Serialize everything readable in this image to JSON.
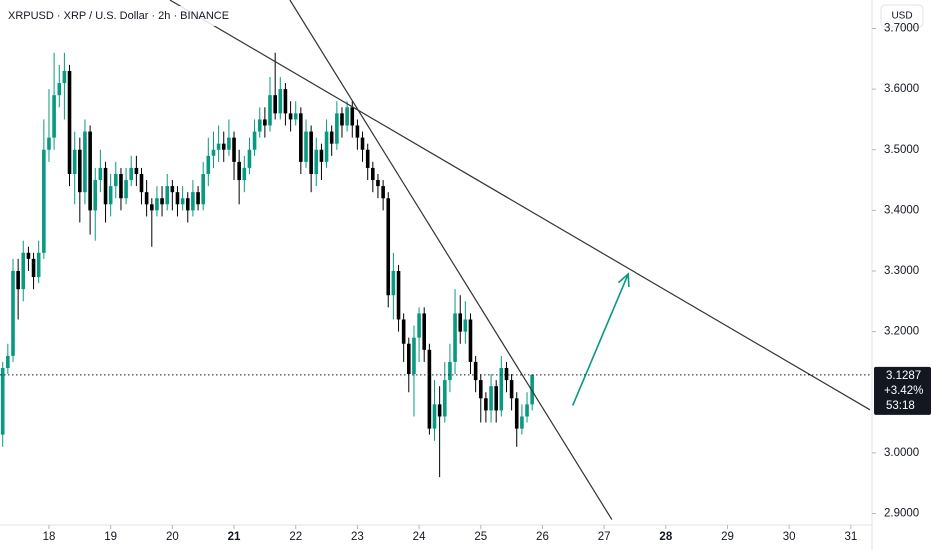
{
  "chart_data": {
    "type": "candlestick",
    "title": "XRPUSD · XRP / U.S. Dollar · 2h · BINANCE",
    "currency": "USD",
    "up_color": "#089981",
    "down_color": "#000000",
    "x": [
      17.25,
      17.333,
      17.417,
      17.5,
      17.583,
      17.667,
      17.75,
      17.833,
      17.917,
      18,
      18.083,
      18.167,
      18.25,
      18.333,
      18.417,
      18.5,
      18.583,
      18.667,
      18.75,
      18.833,
      18.917,
      19,
      19.083,
      19.167,
      19.25,
      19.333,
      19.417,
      19.5,
      19.583,
      19.667,
      19.75,
      19.833,
      19.917,
      20,
      20.083,
      20.167,
      20.25,
      20.333,
      20.417,
      20.5,
      20.583,
      20.667,
      20.75,
      20.833,
      20.917,
      21,
      21.083,
      21.167,
      21.25,
      21.333,
      21.417,
      21.5,
      21.583,
      21.667,
      21.75,
      21.833,
      21.917,
      22,
      22.083,
      22.167,
      22.25,
      22.333,
      22.417,
      22.5,
      22.583,
      22.667,
      22.75,
      22.833,
      22.917,
      23,
      23.083,
      23.167,
      23.25,
      23.333,
      23.417,
      23.5,
      23.583,
      23.667,
      23.75,
      23.833,
      23.917,
      24,
      24.083,
      24.167,
      24.25,
      24.333,
      24.417,
      24.5,
      24.583,
      24.667,
      24.75,
      24.833,
      24.917,
      25,
      25.083,
      25.167,
      25.25,
      25.333,
      25.417,
      25.5,
      25.583,
      25.667,
      25.75,
      25.833
    ],
    "open": [
      3.03,
      3.14,
      3.16,
      3.3,
      3.27,
      3.33,
      3.32,
      3.29,
      3.33,
      3.5,
      3.52,
      3.59,
      3.61,
      3.63,
      3.46,
      3.5,
      3.43,
      3.53,
      3.4,
      3.45,
      3.47,
      3.41,
      3.44,
      3.46,
      3.42,
      3.45,
      3.47,
      3.46,
      3.43,
      3.41,
      3.4,
      3.42,
      3.41,
      3.44,
      3.43,
      3.41,
      3.42,
      3.4,
      3.43,
      3.41,
      3.46,
      3.49,
      3.5,
      3.51,
      3.5,
      3.52,
      3.48,
      3.45,
      3.47,
      3.5,
      3.53,
      3.55,
      3.54,
      3.59,
      3.56,
      3.6,
      3.56,
      3.55,
      3.56,
      3.48,
      3.53,
      3.46,
      3.5,
      3.48,
      3.53,
      3.51,
      3.56,
      3.54,
      3.57,
      3.54,
      3.52,
      3.5,
      3.47,
      3.45,
      3.44,
      3.42,
      3.26,
      3.3,
      3.22,
      3.18,
      3.13,
      3.19,
      3.23,
      3.17,
      3.04,
      3.08,
      3.06,
      3.12,
      3.15,
      3.23,
      3.2,
      3.22,
      3.15,
      3.12,
      3.09,
      3.07,
      3.11,
      3.07,
      3.14,
      3.12,
      3.09,
      3.04,
      3.06,
      3.08
    ],
    "high": [
      3.15,
      3.18,
      3.32,
      3.32,
      3.35,
      3.34,
      3.33,
      3.35,
      3.55,
      3.6,
      3.66,
      3.64,
      3.66,
      3.64,
      3.53,
      3.52,
      3.55,
      3.54,
      3.47,
      3.5,
      3.48,
      3.46,
      3.48,
      3.47,
      3.47,
      3.49,
      3.49,
      3.47,
      3.45,
      3.42,
      3.44,
      3.44,
      3.46,
      3.45,
      3.44,
      3.44,
      3.43,
      3.45,
      3.44,
      3.48,
      3.52,
      3.53,
      3.54,
      3.53,
      3.55,
      3.53,
      3.5,
      3.49,
      3.52,
      3.55,
      3.57,
      3.57,
      3.62,
      3.66,
      3.62,
      3.61,
      3.58,
      3.58,
      3.57,
      3.55,
      3.54,
      3.52,
      3.51,
      3.55,
      3.54,
      3.58,
      3.57,
      3.58,
      3.58,
      3.55,
      3.53,
      3.51,
      3.48,
      3.46,
      3.45,
      3.43,
      3.33,
      3.31,
      3.23,
      3.19,
      3.21,
      3.24,
      3.24,
      3.18,
      3.12,
      3.11,
      3.15,
      3.18,
      3.27,
      3.26,
      3.25,
      3.23,
      3.16,
      3.13,
      3.1,
      3.13,
      3.12,
      3.16,
      3.15,
      3.13,
      3.1,
      3.08,
      3.1,
      3.13
    ],
    "low": [
      3.01,
      3.13,
      3.15,
      3.22,
      3.25,
      3.3,
      3.27,
      3.28,
      3.32,
      3.48,
      3.5,
      3.57,
      3.55,
      3.44,
      3.41,
      3.38,
      3.41,
      3.36,
      3.35,
      3.43,
      3.38,
      3.39,
      3.42,
      3.4,
      3.41,
      3.44,
      3.44,
      3.41,
      3.39,
      3.34,
      3.39,
      3.39,
      3.4,
      3.4,
      3.39,
      3.4,
      3.38,
      3.39,
      3.4,
      3.4,
      3.44,
      3.47,
      3.48,
      3.48,
      3.49,
      3.45,
      3.41,
      3.43,
      3.46,
      3.49,
      3.52,
      3.52,
      3.53,
      3.55,
      3.55,
      3.54,
      3.53,
      3.54,
      3.46,
      3.47,
      3.43,
      3.44,
      3.45,
      3.47,
      3.49,
      3.5,
      3.52,
      3.53,
      3.52,
      3.5,
      3.48,
      3.45,
      3.43,
      3.42,
      3.4,
      3.24,
      3.22,
      3.2,
      3.15,
      3.1,
      3.06,
      3.15,
      3.15,
      3.03,
      3.02,
      2.96,
      3.05,
      3.1,
      3.13,
      3.18,
      3.18,
      3.13,
      3.1,
      3.05,
      3.05,
      3.05,
      3.05,
      3.06,
      3.1,
      3.07,
      3.01,
      3.03,
      3.05,
      3.07
    ],
    "close": [
      3.14,
      3.16,
      3.3,
      3.27,
      3.33,
      3.32,
      3.29,
      3.33,
      3.5,
      3.52,
      3.59,
      3.61,
      3.63,
      3.46,
      3.5,
      3.43,
      3.53,
      3.4,
      3.45,
      3.47,
      3.41,
      3.44,
      3.46,
      3.42,
      3.45,
      3.47,
      3.46,
      3.43,
      3.41,
      3.4,
      3.42,
      3.41,
      3.44,
      3.43,
      3.41,
      3.42,
      3.4,
      3.43,
      3.41,
      3.46,
      3.49,
      3.5,
      3.51,
      3.5,
      3.52,
      3.48,
      3.45,
      3.47,
      3.5,
      3.53,
      3.55,
      3.54,
      3.59,
      3.56,
      3.6,
      3.56,
      3.55,
      3.56,
      3.48,
      3.53,
      3.46,
      3.5,
      3.48,
      3.53,
      3.51,
      3.56,
      3.54,
      3.57,
      3.54,
      3.52,
      3.5,
      3.47,
      3.45,
      3.44,
      3.42,
      3.26,
      3.3,
      3.22,
      3.18,
      3.13,
      3.19,
      3.23,
      3.17,
      3.04,
      3.08,
      3.06,
      3.12,
      3.15,
      3.23,
      3.2,
      3.22,
      3.15,
      3.12,
      3.09,
      3.07,
      3.11,
      3.07,
      3.14,
      3.12,
      3.09,
      3.04,
      3.06,
      3.08,
      3.1287
    ],
    "xlim": [
      17.206,
      31.31
    ],
    "ylim": [
      2.881,
      3.747
    ],
    "xticks": [
      18,
      19,
      20,
      21,
      22,
      23,
      24,
      25,
      26,
      27,
      28,
      29,
      30,
      31
    ],
    "bold_xticks": [
      21,
      28
    ],
    "yticks": [
      {
        "value": 3.7,
        "label": "3.7000"
      },
      {
        "value": 3.6,
        "label": "3.6000"
      },
      {
        "value": 3.5,
        "label": "3.5000"
      },
      {
        "value": 3.4,
        "label": "3.4000"
      },
      {
        "value": 3.3,
        "label": "3.3000"
      },
      {
        "value": 3.2,
        "label": "3.2000"
      },
      {
        "value": 3.0,
        "label": "3.0000"
      },
      {
        "value": 2.9,
        "label": "2.9000"
      }
    ],
    "last_price": {
      "value": 3.1287,
      "label": "3.1287",
      "change": "+3.42%",
      "countdown": "53:18"
    },
    "trendlines": [
      {
        "x": [
          19.96,
          31.31
        ],
        "y": [
          3.747,
          3.071
        ],
        "color": "#333333"
      },
      {
        "x": [
          21.906,
          27.125
        ],
        "y": [
          3.747,
          2.89
        ],
        "color": "#333333"
      }
    ],
    "arrow": {
      "x": [
        26.49,
        27.39
      ],
      "y": [
        3.078,
        3.295
      ],
      "color": "#089981"
    }
  }
}
